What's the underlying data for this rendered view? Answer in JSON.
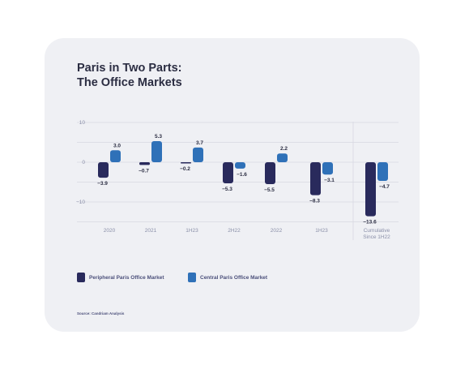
{
  "title": {
    "line1": "Paris in Two Parts:",
    "line2": "The Office Markets"
  },
  "colors": {
    "peripheral": "#292a5c",
    "central": "#2f71b8",
    "card": "#eff0f4",
    "grid": "#d7d9e2",
    "axis_text": "#8a8fa8",
    "label_text": "#2b2d42"
  },
  "chart_data": {
    "type": "bar",
    "categories": [
      "2020",
      "2021",
      "1H23",
      "2H22",
      "2022",
      "1H23",
      "Cumulative\nSince 1H22"
    ],
    "series": [
      {
        "name": "Peripheral Paris Office Market",
        "values": [
          -3.9,
          -0.7,
          -0.2,
          -5.3,
          -5.5,
          -8.3,
          -13.6
        ]
      },
      {
        "name": "Central Paris Office Market",
        "values": [
          3.0,
          5.3,
          3.7,
          -1.6,
          2.2,
          -3.1,
          -4.7
        ]
      }
    ],
    "data_labels": [
      [
        "−3.9",
        "−0.7",
        "−0.2",
        "−5.3",
        "−5.5",
        "−8.3",
        "−13.6"
      ],
      [
        "3.0",
        "5.3",
        "3.7",
        "−1.6",
        "2.2",
        "−3.1",
        "−4.7"
      ]
    ],
    "y_ticks": [
      10,
      0,
      -10
    ],
    "y_tick_labels": [
      "10",
      "0",
      "−10"
    ],
    "ylim": [
      -15,
      11
    ],
    "grid": true,
    "legend_position": "bottom-left",
    "separator_before_last": true
  },
  "legend": {
    "peripheral_label": "Peripheral Paris Office Market",
    "central_label": "Central Paris Office Market"
  },
  "source": "Source: Candriam Analysis"
}
